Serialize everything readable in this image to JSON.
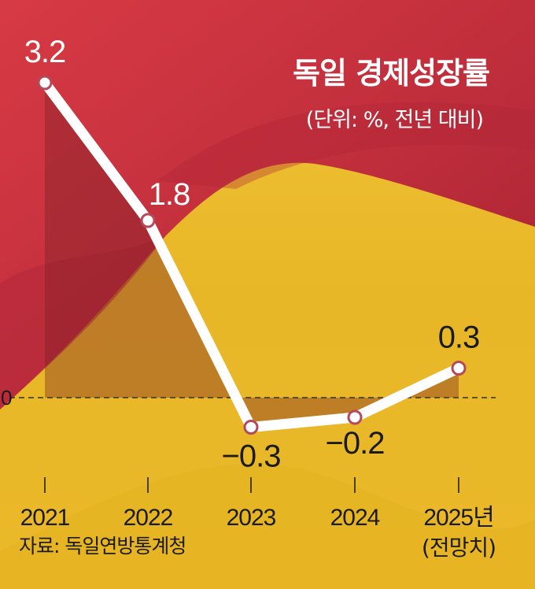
{
  "chart_data": {
    "type": "line",
    "title": "독일 경제성장률",
    "subtitle": "(단위: %, 전년 대비)",
    "source": "자료: 독일연방통계청",
    "categories": [
      "2021",
      "2022",
      "2023",
      "2024",
      "2025년"
    ],
    "category_sublabels": [
      "",
      "",
      "",
      "",
      "(전망치)"
    ],
    "values": [
      3.2,
      1.8,
      -0.3,
      -0.2,
      0.3
    ],
    "value_labels": [
      "3.2",
      "1.8",
      "−0.3",
      "−0.2",
      "0.3"
    ],
    "zero_label": "0",
    "ylim": [
      -0.6,
      3.6
    ],
    "grid": false,
    "colors": {
      "line": "#ffffff",
      "red": "#c8313f",
      "yellow": "#ecbd2c",
      "label_dark": "#1b1b1b"
    }
  }
}
